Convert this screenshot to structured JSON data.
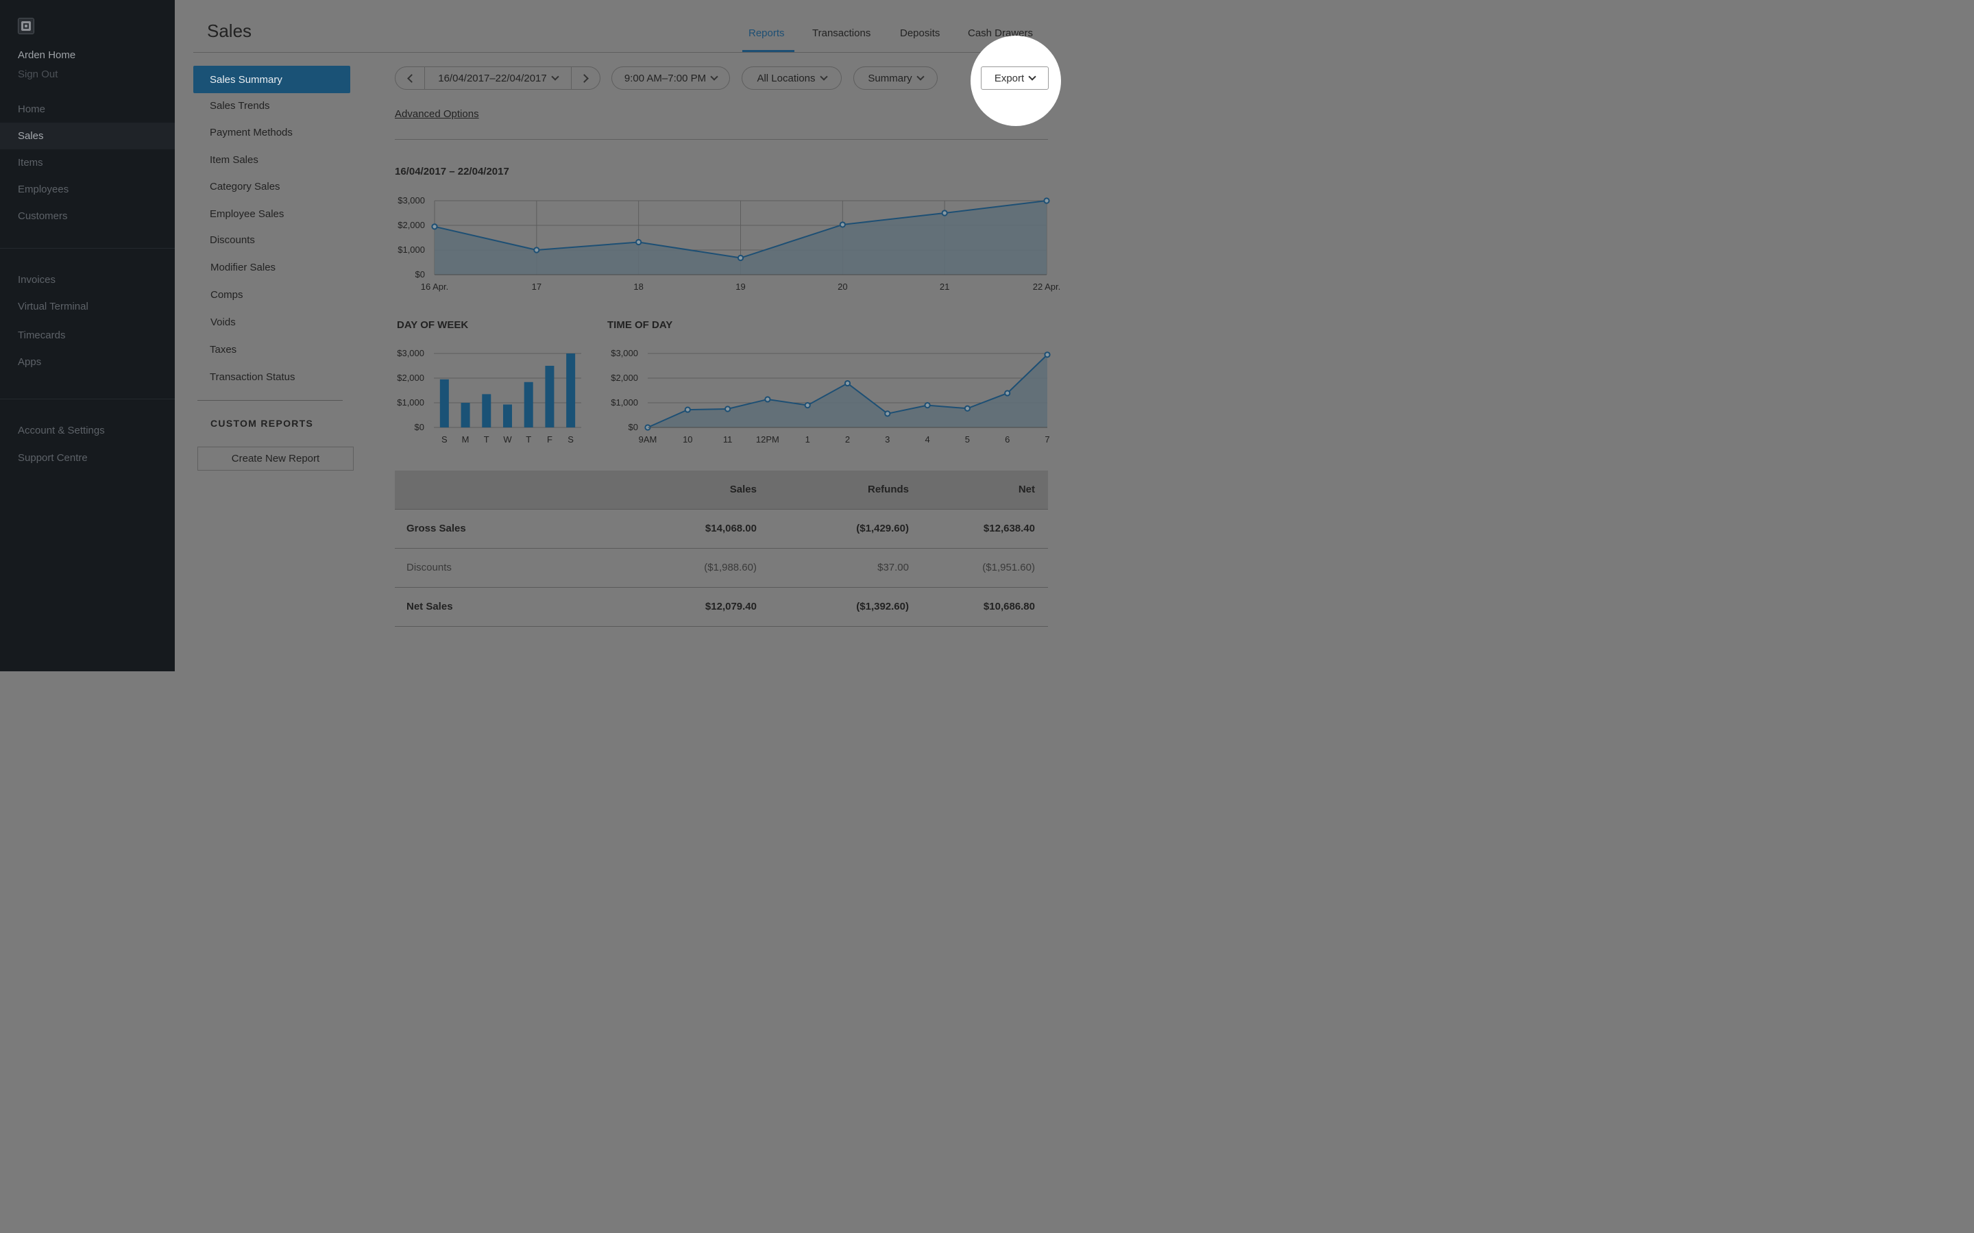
{
  "sidebar": {
    "business_name": "Arden Home",
    "sign_out": "Sign Out",
    "primary_items": [
      "Home",
      "Sales",
      "Items",
      "Employees",
      "Customers"
    ],
    "secondary_items": [
      "Invoices",
      "Virtual Terminal",
      "Timecards",
      "Apps"
    ],
    "tertiary_items": [
      "Account & Settings",
      "Support Centre"
    ],
    "active_item": "Sales"
  },
  "header": {
    "title": "Sales",
    "tabs": [
      "Reports",
      "Transactions",
      "Deposits",
      "Cash Drawers"
    ],
    "active_tab": "Reports"
  },
  "subnav": {
    "items": [
      "Sales Summary",
      "Sales Trends",
      "Payment Methods",
      "Item Sales",
      "Category Sales",
      "Employee Sales",
      "Discounts",
      "Modifier Sales",
      "Comps",
      "Voids",
      "Taxes",
      "Transaction Status"
    ],
    "active_item": "Sales Summary",
    "custom_reports_heading": "CUSTOM REPORTS",
    "create_button": "Create New Report"
  },
  "filters": {
    "date_range": "16/04/2017–22/04/2017",
    "time_range": "9:00 AM–7:00 PM",
    "location": "All Locations",
    "view": "Summary",
    "export_label": "Export",
    "advanced_options": "Advanced Options"
  },
  "range_label": "16/04/2017 – 22/04/2017",
  "colors": {
    "accent": "#1a5276",
    "line": "#1d4f74",
    "area_fill": "#5f6f78"
  },
  "chart_data": [
    {
      "id": "daily",
      "type": "area",
      "title": "",
      "x": [
        "16 Apr.",
        "17",
        "18",
        "19",
        "20",
        "21",
        "22 Apr."
      ],
      "values": [
        1950,
        1000,
        1320,
        680,
        2030,
        2500,
        3000
      ],
      "yticks": [
        "$3,000",
        "$2,000",
        "$1,000",
        "$0"
      ],
      "ylim": [
        0,
        3000
      ],
      "grid": true
    },
    {
      "id": "day_of_week",
      "type": "bar",
      "title": "DAY OF WEEK",
      "categories": [
        "S",
        "M",
        "T",
        "W",
        "T",
        "F",
        "S"
      ],
      "values": [
        1950,
        1000,
        1350,
        930,
        1840,
        2500,
        3000
      ],
      "yticks": [
        "$3,000",
        "$2,000",
        "$1,000",
        "$0"
      ],
      "ylim": [
        0,
        3000
      ],
      "grid": true
    },
    {
      "id": "time_of_day",
      "type": "area",
      "title": "TIME OF DAY",
      "x": [
        "9AM",
        "10",
        "11",
        "12PM",
        "1",
        "2",
        "3",
        "4",
        "5",
        "6",
        "7"
      ],
      "values": [
        0,
        720,
        750,
        1140,
        900,
        1790,
        560,
        900,
        770,
        1390,
        2950
      ],
      "yticks": [
        "$3,000",
        "$2,000",
        "$1,000",
        "$0"
      ],
      "ylim": [
        0,
        3000
      ],
      "grid": true
    }
  ],
  "summary_table": {
    "columns": [
      "",
      "Sales",
      "Refunds",
      "Net"
    ],
    "rows": [
      {
        "label": "Gross Sales",
        "sales": "$14,068.00",
        "refunds": "($1,429.60)",
        "net": "$12,638.40"
      },
      {
        "label": "Discounts",
        "sales": "($1,988.60)",
        "refunds": "$37.00",
        "net": "($1,951.60)"
      },
      {
        "label": "Net Sales",
        "sales": "$12,079.40",
        "refunds": "($1,392.60)",
        "net": "$10,686.80"
      }
    ]
  }
}
